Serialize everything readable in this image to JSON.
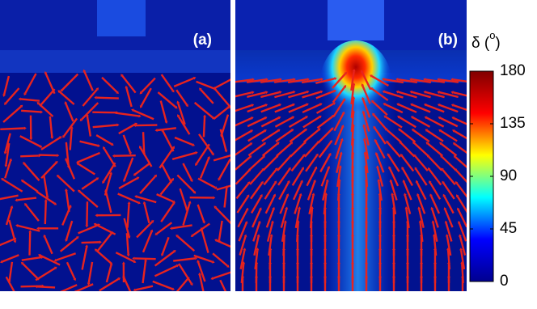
{
  "chart_data": {
    "type": "heatmap",
    "panels": [
      "(a)",
      "(b)"
    ],
    "colorbar": {
      "label": "δ (",
      "label_sup": "o",
      "label_end": ")",
      "lim": [
        0,
        180
      ],
      "ticks": [
        0,
        45,
        90,
        135,
        180
      ],
      "colors": [
        "#00008f",
        "#0000ff",
        "#00ffff",
        "#ffff00",
        "#ff0000",
        "#800000"
      ]
    }
  }
}
